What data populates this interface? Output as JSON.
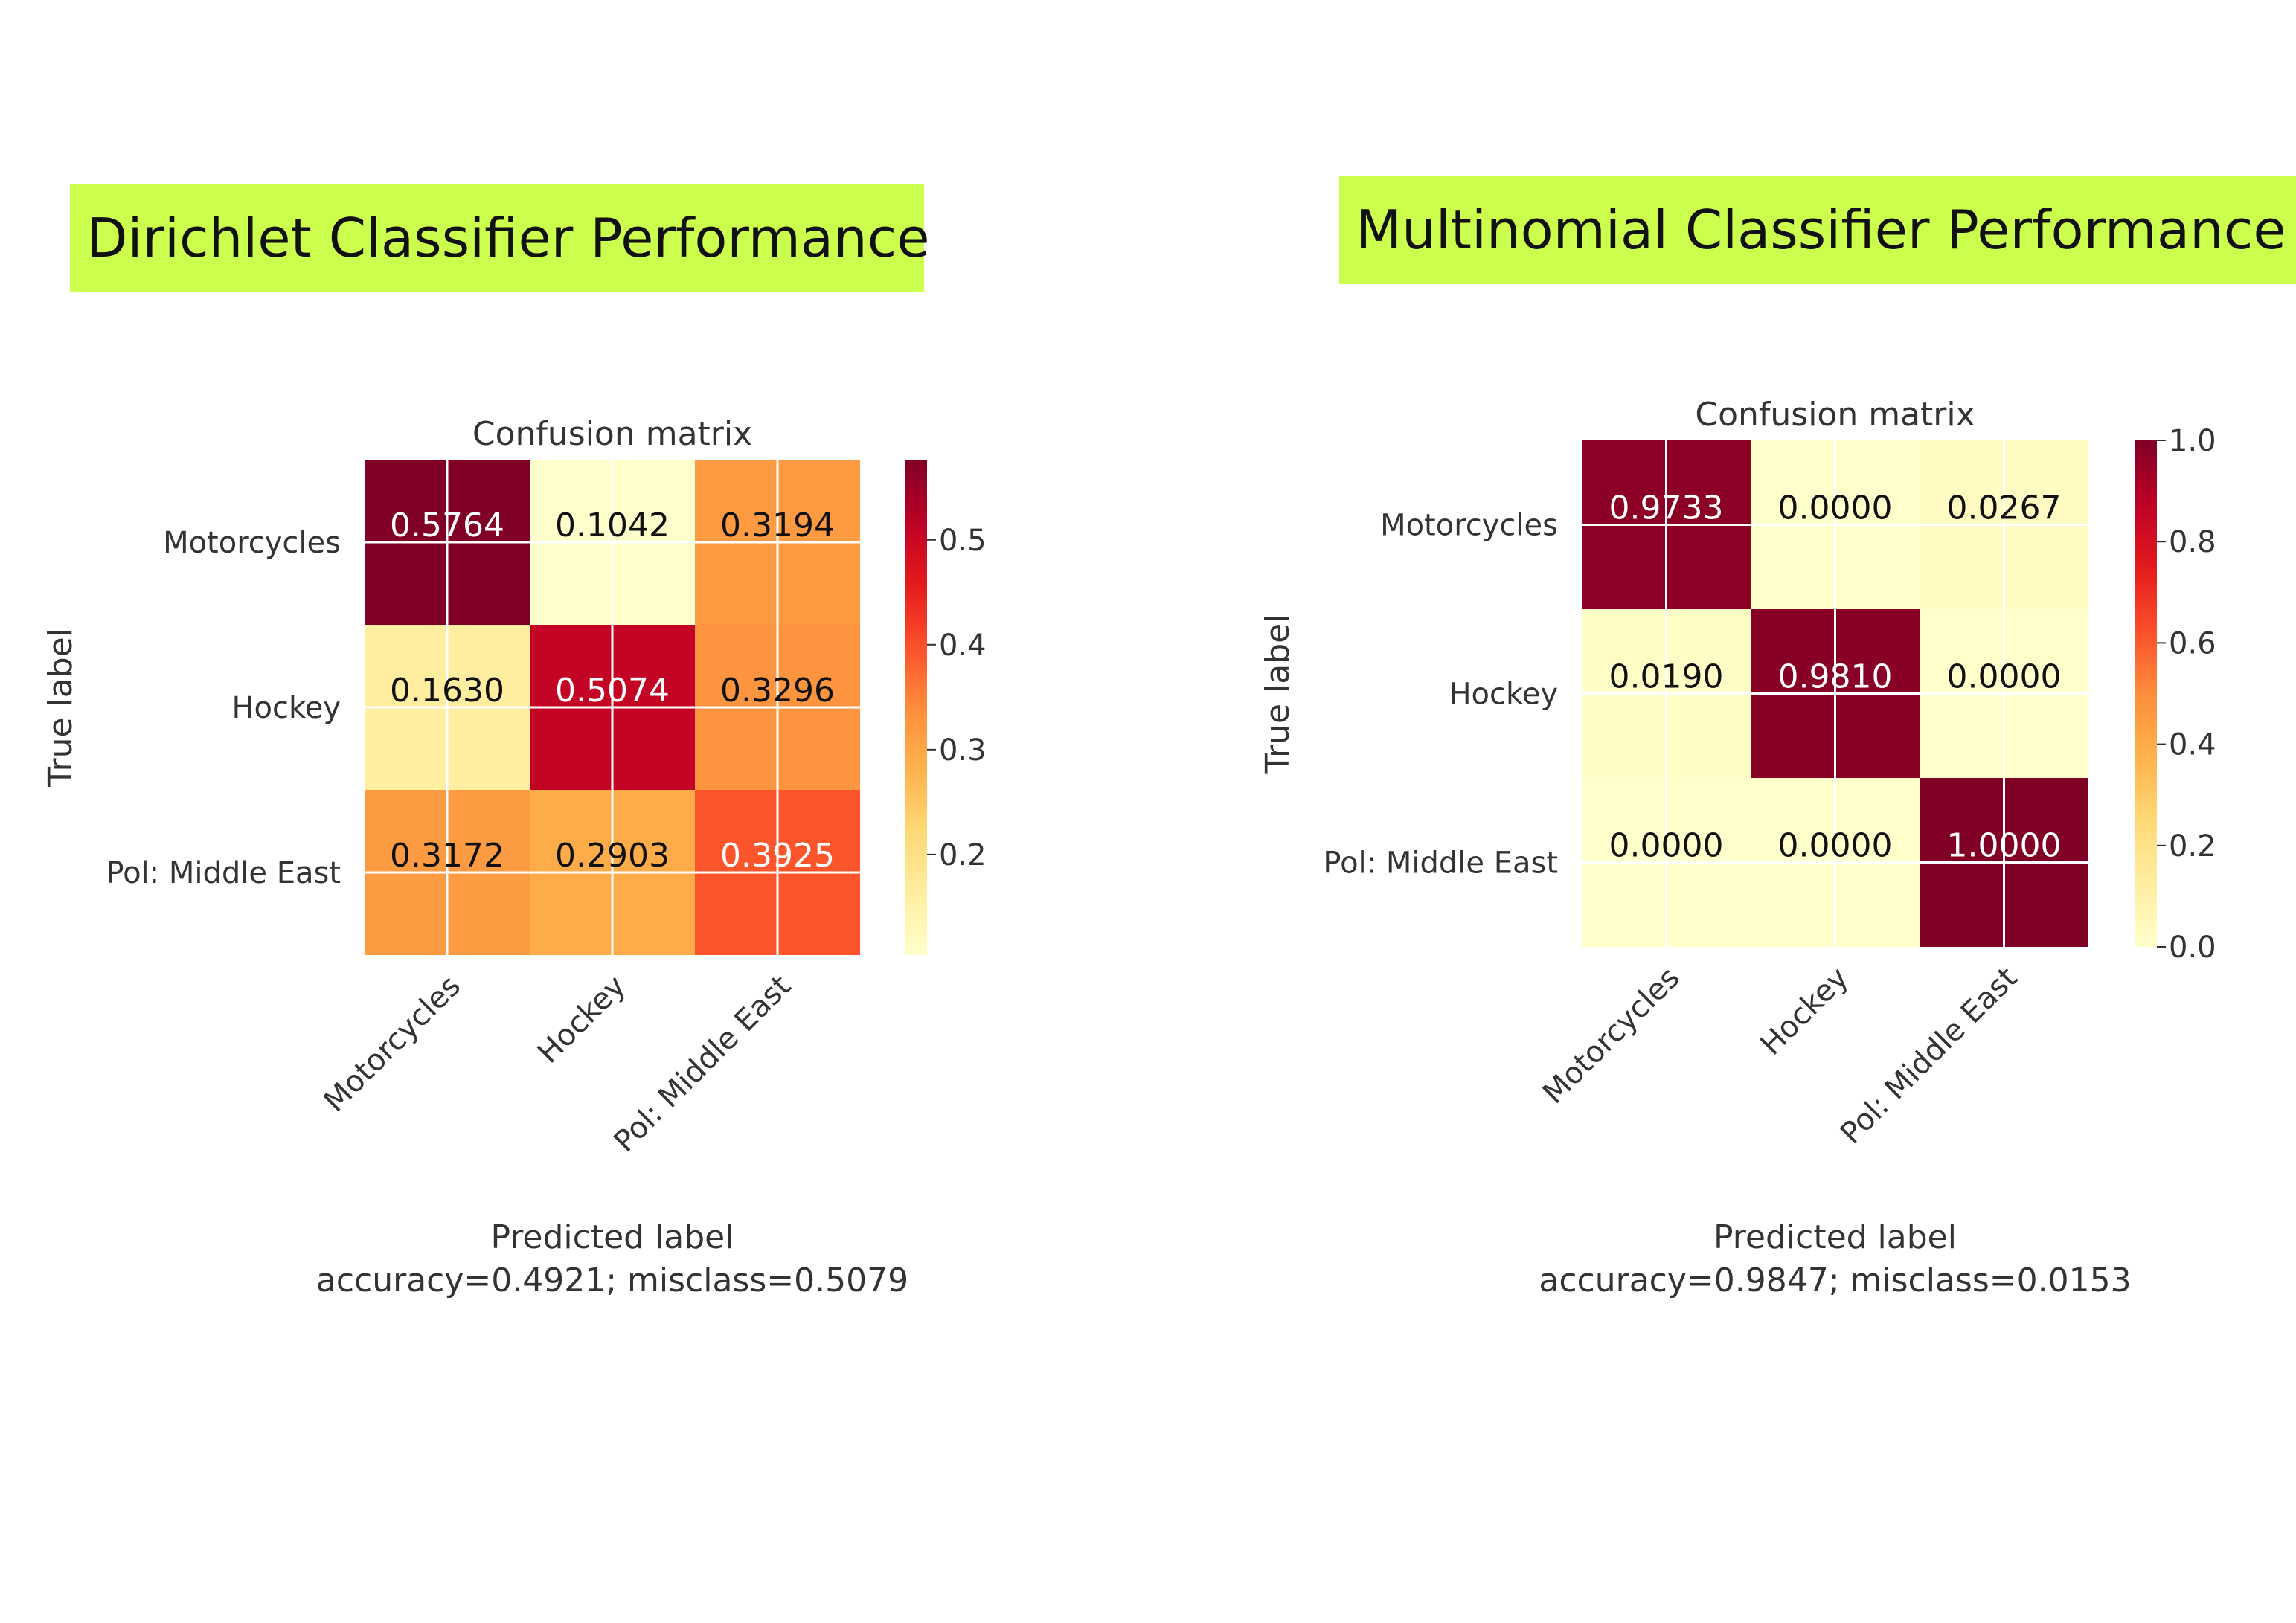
{
  "colors": {
    "banner": "#ccff4d",
    "text": "#333333",
    "colormap": [
      "#ffffcc",
      "#ffeda0",
      "#fed976",
      "#feb24c",
      "#fd8d3c",
      "#fc4e2a",
      "#e31a1c",
      "#bd0026",
      "#800026"
    ]
  },
  "banners": {
    "left": "Dirichlet Classifier Performance",
    "right": "Multinomial Classifier Performance"
  },
  "chart_data": [
    {
      "type": "heatmap",
      "title": "Confusion matrix",
      "ylabel": "True label",
      "xlabel": "Predicted label",
      "footer": "accuracy=0.4921; misclass=0.5079",
      "rows": [
        "Motorcycles",
        "Hockey",
        "Pol: Middle East"
      ],
      "cols": [
        "Motorcycles",
        "Hockey",
        "Pol: Middle East"
      ],
      "values": [
        [
          0.5764,
          0.1042,
          0.3194
        ],
        [
          0.163,
          0.5074,
          0.3296
        ],
        [
          0.3172,
          0.2903,
          0.3925
        ]
      ],
      "labels": [
        [
          "0.5764",
          "0.1042",
          "0.3194"
        ],
        [
          "0.1630",
          "0.5074",
          "0.3296"
        ],
        [
          "0.3172",
          "0.2903",
          "0.3925"
        ]
      ],
      "vmin": 0.1042,
      "vmax": 0.5764,
      "colorbar_ticks": [
        0.2,
        0.3,
        0.4,
        0.5
      ],
      "colorbar_labels": [
        "0.2",
        "0.3",
        "0.4",
        "0.5"
      ],
      "grid": true
    },
    {
      "type": "heatmap",
      "title": "Confusion matrix",
      "ylabel": "True label",
      "xlabel": "Predicted label",
      "footer": "accuracy=0.9847; misclass=0.0153",
      "rows": [
        "Motorcycles",
        "Hockey",
        "Pol: Middle East"
      ],
      "cols": [
        "Motorcycles",
        "Hockey",
        "Pol: Middle East"
      ],
      "values": [
        [
          0.9733,
          0.0,
          0.0267
        ],
        [
          0.019,
          0.981,
          0.0
        ],
        [
          0.0,
          0.0,
          1.0
        ]
      ],
      "labels": [
        [
          "0.9733",
          "0.0000",
          "0.0267"
        ],
        [
          "0.0190",
          "0.9810",
          "0.0000"
        ],
        [
          "0.0000",
          "0.0000",
          "1.0000"
        ]
      ],
      "vmin": 0.0,
      "vmax": 1.0,
      "colorbar_ticks": [
        0.0,
        0.2,
        0.4,
        0.6,
        0.8,
        1.0
      ],
      "colorbar_labels": [
        "0.0",
        "0.2",
        "0.4",
        "0.6",
        "0.8",
        "1.0"
      ],
      "grid": true
    }
  ]
}
